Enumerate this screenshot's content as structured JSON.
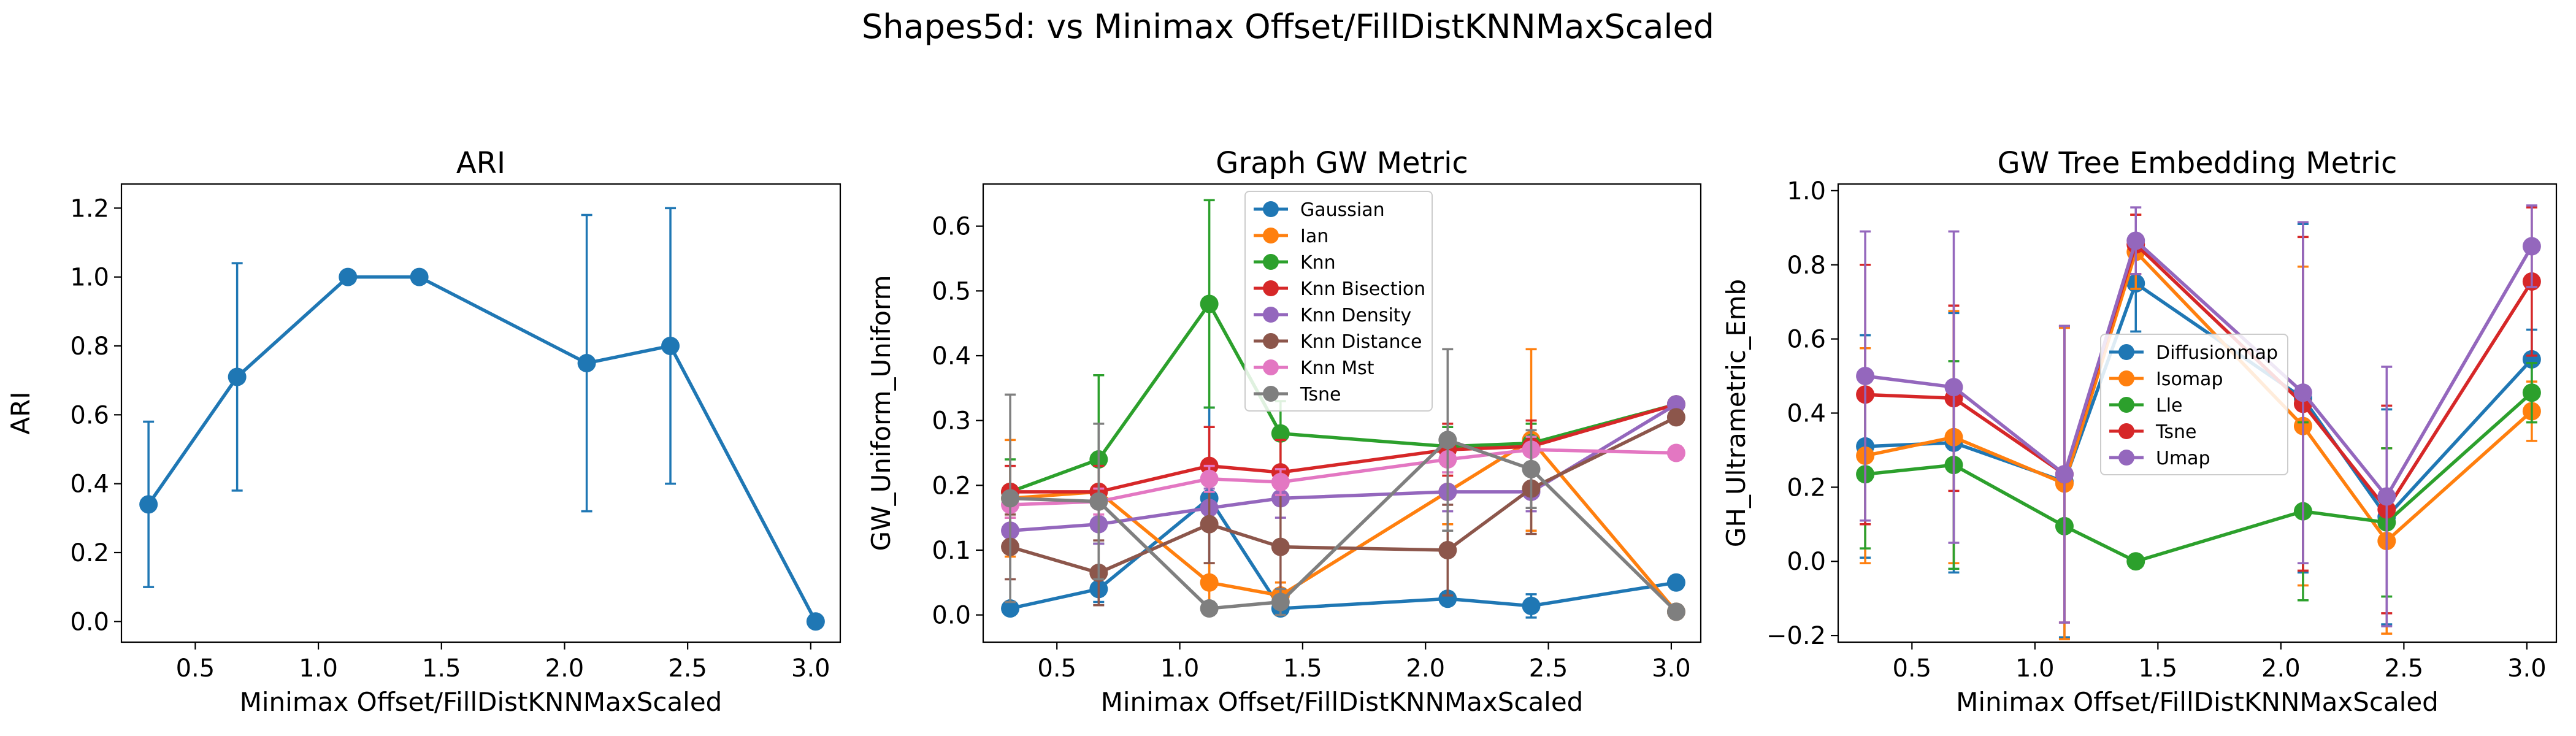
{
  "figure": {
    "suptitle": "Shapes5d: vs Minimax Offset/FillDistKNNMaxScaled"
  },
  "chart_data": [
    {
      "type": "line",
      "title": "ARI",
      "xlabel": "Minimax Offset/FillDistKNNMaxScaled",
      "ylabel": "ARI",
      "xlim": [
        0.2,
        3.12
      ],
      "ylim": [
        -0.06,
        1.27
      ],
      "xticks": [
        0.5,
        1.0,
        1.5,
        2.0,
        2.5,
        3.0
      ],
      "xtick_labels": [
        "0.5",
        "1.0",
        "1.5",
        "2.0",
        "2.5",
        "3.0"
      ],
      "yticks": [
        0.0,
        0.2,
        0.4,
        0.6,
        0.8,
        1.0,
        1.2
      ],
      "ytick_labels": [
        "0.0",
        "0.2",
        "0.4",
        "0.6",
        "0.8",
        "1.0",
        "1.2"
      ],
      "legend": null,
      "series": [
        {
          "name": "",
          "color": "#1f77b4",
          "x": [
            0.31,
            0.67,
            1.12,
            1.41,
            2.09,
            2.43,
            3.02
          ],
          "y": [
            0.34,
            0.71,
            1.0,
            1.0,
            0.75,
            0.8,
            0.0
          ],
          "err": [
            0.24,
            0.33,
            0.0,
            0.0,
            0.43,
            0.4,
            0.0
          ]
        }
      ]
    },
    {
      "type": "line",
      "title": "Graph GW Metric",
      "xlabel": "Minimax Offset/FillDistKNNMaxScaled",
      "ylabel": "GW_Uniform_Uniform",
      "xlim": [
        0.2,
        3.12
      ],
      "ylim": [
        -0.042,
        0.665
      ],
      "xticks": [
        0.5,
        1.0,
        1.5,
        2.0,
        2.5,
        3.0
      ],
      "xtick_labels": [
        "0.5",
        "1.0",
        "1.5",
        "2.0",
        "2.5",
        "3.0"
      ],
      "yticks": [
        0.0,
        0.1,
        0.2,
        0.3,
        0.4,
        0.5,
        0.6
      ],
      "ytick_labels": [
        "0.0",
        "0.1",
        "0.2",
        "0.3",
        "0.4",
        "0.5",
        "0.6"
      ],
      "legend": "upper-center",
      "series": [
        {
          "name": "Gaussian",
          "color": "#1f77b4",
          "x": [
            0.31,
            0.67,
            1.12,
            1.41,
            2.09,
            2.43,
            3.02
          ],
          "y": [
            0.01,
            0.04,
            0.18,
            0.01,
            0.025,
            0.014,
            0.05
          ],
          "err": [
            0.01,
            0.02,
            0.14,
            0.01,
            0.01,
            0.018,
            0.01
          ]
        },
        {
          "name": "Ian",
          "color": "#ff7f0e",
          "x": [
            0.31,
            0.67,
            1.12,
            1.41,
            2.09,
            2.43,
            3.02
          ],
          "y": [
            0.18,
            0.19,
            0.05,
            0.03,
            0.19,
            0.27,
            0.005
          ],
          "err": [
            0.09,
            0.05,
            0.03,
            0.02,
            0.05,
            0.14,
            0.005
          ]
        },
        {
          "name": "Knn",
          "color": "#2ca02c",
          "x": [
            0.31,
            0.67,
            1.12,
            1.41,
            2.09,
            2.43,
            3.02
          ],
          "y": [
            0.19,
            0.24,
            0.48,
            0.28,
            0.26,
            0.265,
            0.325
          ],
          "err": [
            0.05,
            0.13,
            0.16,
            0.05,
            0.03,
            0.03,
            0.01
          ]
        },
        {
          "name": "Knn Bisection",
          "color": "#d62728",
          "x": [
            0.31,
            0.67,
            1.12,
            1.41,
            2.09,
            2.43,
            3.02
          ],
          "y": [
            0.19,
            0.19,
            0.23,
            0.22,
            0.255,
            0.26,
            0.325
          ],
          "err": [
            0.04,
            0.04,
            0.06,
            0.05,
            0.04,
            0.04,
            0.01
          ]
        },
        {
          "name": "Knn Density",
          "color": "#9467bd",
          "x": [
            0.31,
            0.67,
            1.12,
            1.41,
            2.09,
            2.43,
            3.02
          ],
          "y": [
            0.13,
            0.14,
            0.165,
            0.18,
            0.19,
            0.19,
            0.325
          ],
          "err": [
            0.03,
            0.03,
            0.03,
            0.03,
            0.03,
            0.03,
            0.01
          ]
        },
        {
          "name": "Knn Distance",
          "color": "#8c564b",
          "x": [
            0.31,
            0.67,
            1.12,
            1.41,
            2.09,
            2.43,
            3.02
          ],
          "y": [
            0.105,
            0.065,
            0.14,
            0.105,
            0.1,
            0.195,
            0.305
          ],
          "err": [
            0.05,
            0.05,
            0.06,
            0.08,
            0.07,
            0.07,
            0.01
          ]
        },
        {
          "name": "Knn Mst",
          "color": "#e377c2",
          "x": [
            0.31,
            0.67,
            1.12,
            1.41,
            2.09,
            2.43,
            3.02
          ],
          "y": [
            0.17,
            0.175,
            0.21,
            0.205,
            0.24,
            0.255,
            0.25
          ],
          "err": [
            0.02,
            0.02,
            0.02,
            0.02,
            0.02,
            0.02,
            0.01
          ]
        },
        {
          "name": "Tsne",
          "color": "#7f7f7f",
          "x": [
            0.31,
            0.67,
            1.12,
            1.41,
            2.09,
            2.43,
            3.02
          ],
          "y": [
            0.18,
            0.175,
            0.01,
            0.02,
            0.27,
            0.225,
            0.005
          ],
          "err": [
            0.16,
            0.12,
            0.01,
            0.02,
            0.14,
            0.06,
            0.005
          ]
        }
      ]
    },
    {
      "type": "line",
      "title": "GW Tree Embedding Metric",
      "xlabel": "Minimax Offset/FillDistKNNMaxScaled",
      "ylabel": "GH_Ultrametric_Emb",
      "xlim": [
        0.2,
        3.12
      ],
      "ylim": [
        -0.218,
        1.018
      ],
      "xticks": [
        0.5,
        1.0,
        1.5,
        2.0,
        2.5,
        3.0
      ],
      "xtick_labels": [
        "0.5",
        "1.0",
        "1.5",
        "2.0",
        "2.5",
        "3.0"
      ],
      "yticks": [
        -0.2,
        0.0,
        0.2,
        0.4,
        0.6,
        0.8,
        1.0
      ],
      "ytick_labels": [
        "−0.2",
        "0.0",
        "0.2",
        "0.4",
        "0.6",
        "0.8",
        "1.0"
      ],
      "legend": "center",
      "series": [
        {
          "name": "Diffusionmap",
          "color": "#1f77b4",
          "x": [
            0.31,
            0.67,
            1.12,
            1.41,
            2.09,
            2.43,
            3.02
          ],
          "y": [
            0.31,
            0.32,
            0.215,
            0.75,
            0.44,
            0.12,
            0.545
          ],
          "err": [
            0.3,
            0.35,
            0.42,
            0.13,
            0.47,
            0.29,
            0.08
          ]
        },
        {
          "name": "Isomap",
          "color": "#ff7f0e",
          "x": [
            0.31,
            0.67,
            1.12,
            1.41,
            2.09,
            2.43,
            3.02
          ],
          "y": [
            0.285,
            0.335,
            0.21,
            0.835,
            0.365,
            0.055,
            0.405
          ],
          "err": [
            0.29,
            0.34,
            0.42,
            0.1,
            0.43,
            0.25,
            0.08
          ]
        },
        {
          "name": "Lle",
          "color": "#2ca02c",
          "x": [
            0.31,
            0.67,
            1.12,
            1.41,
            2.09,
            2.43,
            3.02
          ],
          "y": [
            0.235,
            0.26,
            0.095,
            0.0,
            0.135,
            0.105,
            0.455
          ],
          "err": [
            0.2,
            0.28,
            0.0,
            0.0,
            0.24,
            0.2,
            0.08
          ]
        },
        {
          "name": "Tsne",
          "color": "#d62728",
          "x": [
            0.31,
            0.67,
            1.12,
            1.41,
            2.09,
            2.43,
            3.02
          ],
          "y": [
            0.45,
            0.44,
            0.235,
            0.855,
            0.425,
            0.14,
            0.755
          ],
          "err": [
            0.35,
            0.25,
            0.4,
            0.08,
            0.45,
            0.28,
            0.2
          ]
        },
        {
          "name": "Umap",
          "color": "#9467bd",
          "x": [
            0.31,
            0.67,
            1.12,
            1.41,
            2.09,
            2.43,
            3.02
          ],
          "y": [
            0.5,
            0.47,
            0.235,
            0.865,
            0.455,
            0.175,
            0.85
          ],
          "err": [
            0.39,
            0.42,
            0.4,
            0.09,
            0.46,
            0.35,
            0.11
          ]
        }
      ]
    }
  ]
}
